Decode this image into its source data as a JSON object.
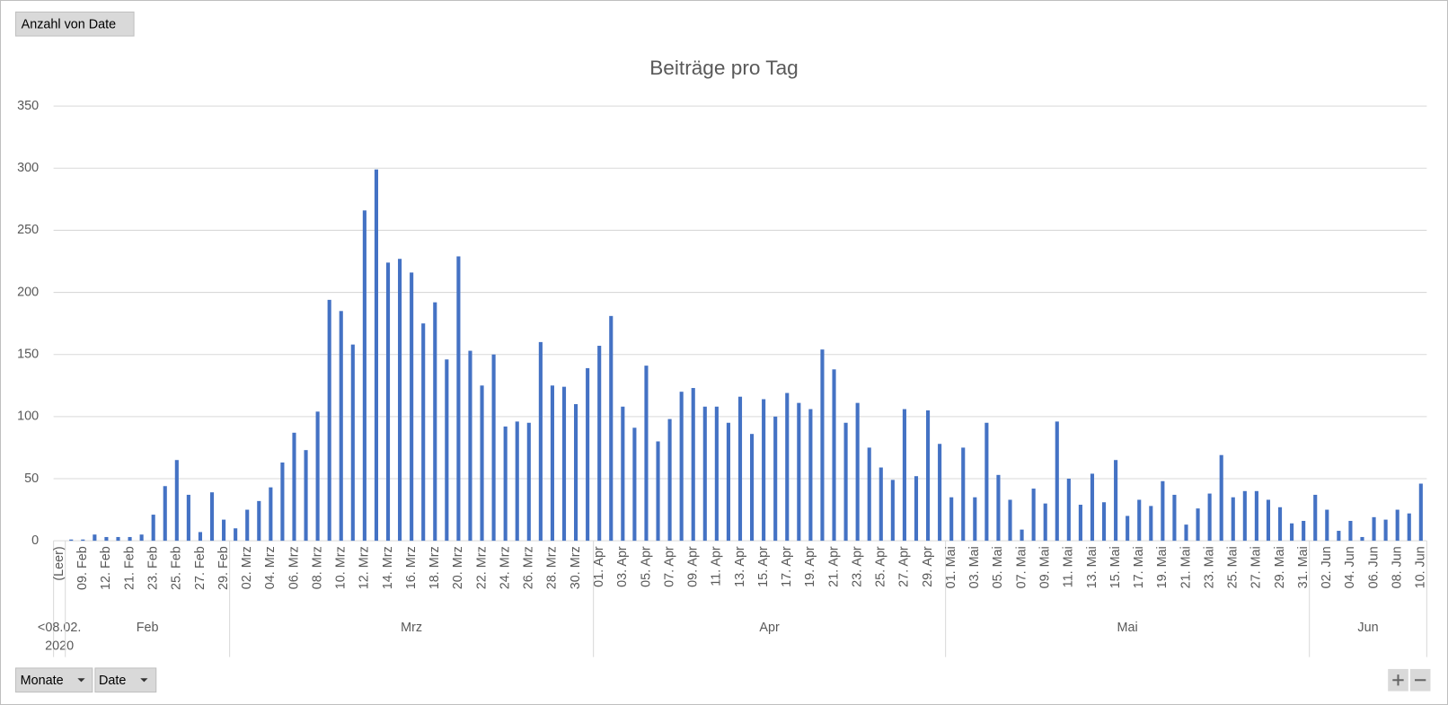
{
  "field_buttons": {
    "value_field": "Anzahl von Date",
    "axis_fields": [
      "Monate",
      "Date"
    ]
  },
  "chart_data": {
    "type": "bar",
    "title": "Beiträge pro Tag",
    "color": "#4472c4",
    "ylim": [
      0,
      350
    ],
    "yticks": [
      0,
      50,
      100,
      150,
      200,
      250,
      300,
      350
    ],
    "grid": true,
    "groups": [
      {
        "label": "<08.02. 2020",
        "categories": [
          "(Leer)"
        ],
        "values": [
          0
        ]
      },
      {
        "label": "Feb",
        "categories": [
          null,
          "09. Feb",
          null,
          "12. Feb",
          null,
          "21. Feb",
          null,
          "23. Feb",
          null,
          "25. Feb",
          null,
          "27. Feb",
          null,
          "29. Feb"
        ],
        "values": [
          1,
          1,
          5,
          3,
          3,
          3,
          5,
          21,
          44,
          65,
          37,
          7,
          39,
          17
        ]
      },
      {
        "label": "Mrz",
        "categories": [
          null,
          "02. Mrz",
          null,
          "04. Mrz",
          null,
          "06. Mrz",
          null,
          "08. Mrz",
          null,
          "10. Mrz",
          null,
          "12. Mrz",
          null,
          "14. Mrz",
          null,
          "16. Mrz",
          null,
          "18. Mrz",
          null,
          "20. Mrz",
          null,
          "22. Mrz",
          null,
          "24. Mrz",
          null,
          "26. Mrz",
          null,
          "28. Mrz",
          null,
          "30. Mrz",
          null
        ],
        "values": [
          10,
          25,
          32,
          43,
          63,
          87,
          73,
          104,
          194,
          185,
          158,
          266,
          299,
          224,
          227,
          216,
          175,
          192,
          146,
          229,
          153,
          125,
          150,
          92,
          96,
          95,
          160,
          125,
          124,
          110,
          139
        ]
      },
      {
        "label": "Apr",
        "categories": [
          "01. Apr",
          null,
          "03. Apr",
          null,
          "05. Apr",
          null,
          "07. Apr",
          null,
          "09. Apr",
          null,
          "11. Apr",
          null,
          "13. Apr",
          null,
          "15. Apr",
          null,
          "17. Apr",
          null,
          "19. Apr",
          null,
          "21. Apr",
          null,
          "23. Apr",
          null,
          "25. Apr",
          null,
          "27. Apr",
          null,
          "29. Apr",
          null
        ],
        "values": [
          157,
          181,
          108,
          91,
          141,
          80,
          98,
          120,
          123,
          108,
          108,
          95,
          116,
          86,
          114,
          100,
          119,
          111,
          106,
          154,
          138,
          95,
          111,
          75,
          59,
          49,
          106,
          52,
          105,
          78
        ]
      },
      {
        "label": "Mai",
        "categories": [
          "01. Mai",
          null,
          "03. Mai",
          null,
          "05. Mai",
          null,
          "07. Mai",
          null,
          "09. Mai",
          null,
          "11. Mai",
          null,
          "13. Mai",
          null,
          "15. Mai",
          null,
          "17. Mai",
          null,
          "19. Mai",
          null,
          "21. Mai",
          null,
          "23. Mai",
          null,
          "25. Mai",
          null,
          "27. Mai",
          null,
          "29. Mai",
          null,
          "31. Mai"
        ],
        "values": [
          35,
          75,
          35,
          95,
          53,
          33,
          9,
          42,
          30,
          96,
          50,
          29,
          54,
          31,
          65,
          20,
          33,
          28,
          48,
          37,
          13,
          26,
          38,
          69,
          35,
          40,
          40,
          33,
          27,
          14,
          16
        ]
      },
      {
        "label": "Jun",
        "categories": [
          null,
          "02. Jun",
          null,
          "04. Jun",
          null,
          "06. Jun",
          null,
          "08. Jun",
          null,
          "10. Jun"
        ],
        "values": [
          37,
          25,
          8,
          16,
          3,
          19,
          17,
          25,
          22,
          46
        ]
      }
    ]
  }
}
